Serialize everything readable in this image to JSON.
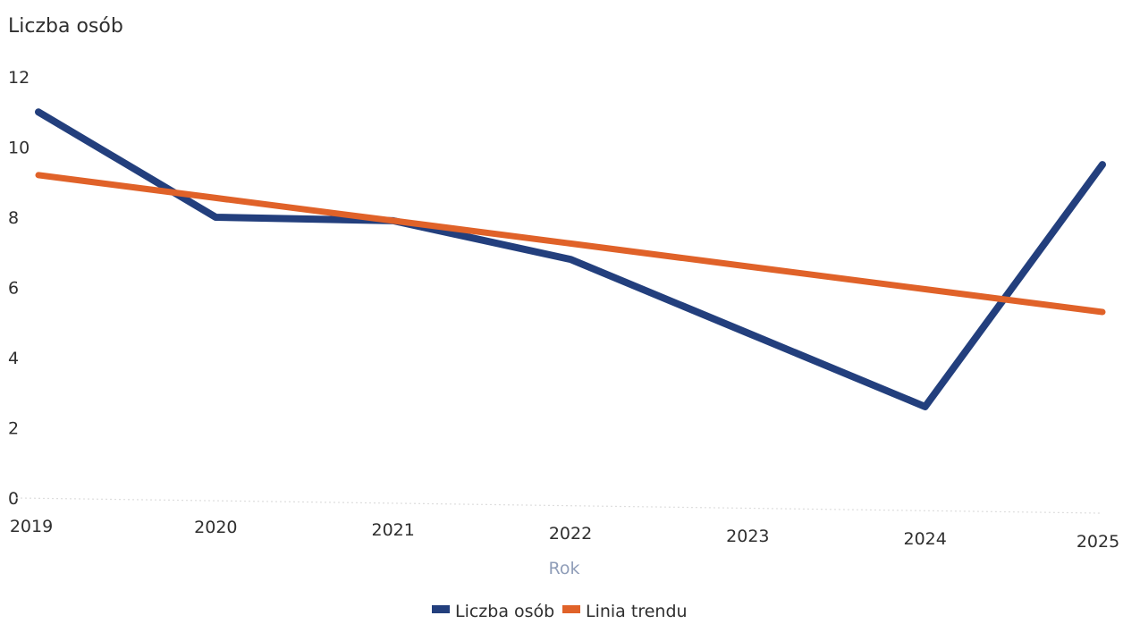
{
  "chart_data": {
    "type": "line",
    "title": "",
    "ylabel": "Liczba osób",
    "xlabel": "Rok",
    "x": [
      "2019",
      "2020",
      "2021",
      "2022",
      "2023",
      "2024",
      "2025"
    ],
    "ylim": [
      0,
      12
    ],
    "yticks": [
      0,
      2,
      4,
      6,
      8,
      10,
      12
    ],
    "grid": false,
    "legend_placement": "bottom-center",
    "series": [
      {
        "name": "Liczba osób",
        "color": "#233f7d",
        "values": [
          11,
          8,
          7.9,
          6.8,
          4.7,
          2.6,
          9.5
        ]
      },
      {
        "name": "Linia trendu",
        "color": "#e06229",
        "values": [
          9.2,
          8.55,
          7.9,
          7.25,
          6.6,
          5.95,
          5.3
        ]
      }
    ]
  }
}
